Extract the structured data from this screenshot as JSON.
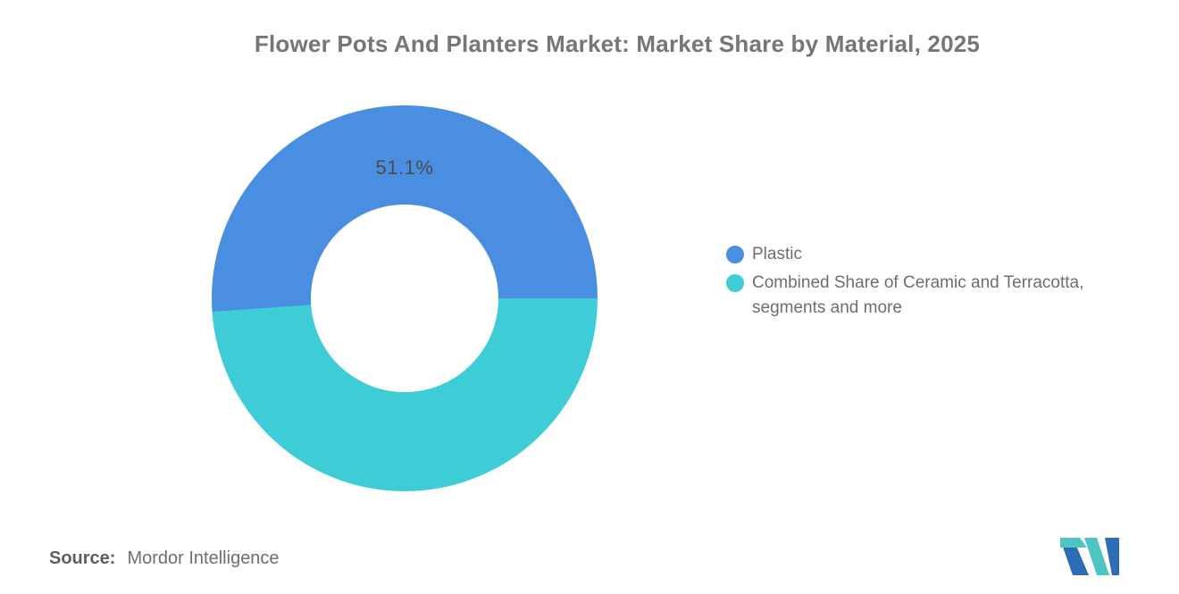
{
  "title": "Flower Pots And Planters Market: Market Share by Material, 2025",
  "chart_data": {
    "type": "pie",
    "subtype": "donut",
    "title": "Flower Pots And Planters Market: Market Share by Material, 2025",
    "start_angle_deg": 0,
    "direction": "counterclockwise",
    "inner_radius_ratio": 0.485,
    "legend_position": "right",
    "slices": [
      {
        "label": "Plastic",
        "value": 51.1,
        "color": "#4a8ee2",
        "data_label": "51.1%"
      },
      {
        "label": "Combined Share of Ceramic and Terracotta, segments and more",
        "value": 48.9,
        "color": "#3ecdd6",
        "data_label": ""
      }
    ]
  },
  "legend": {
    "items": [
      {
        "label": "Plastic",
        "color": "#4a8ee2"
      },
      {
        "label": "Combined Share of Ceramic and Terracotta, segments and more",
        "color": "#3ecdd6"
      }
    ]
  },
  "source": {
    "label": "Source:",
    "value": "Mordor Intelligence"
  },
  "logo": {
    "name": "Mordor Intelligence logo mark",
    "blue": "#2d6db6",
    "teal": "#4fc5c3"
  }
}
